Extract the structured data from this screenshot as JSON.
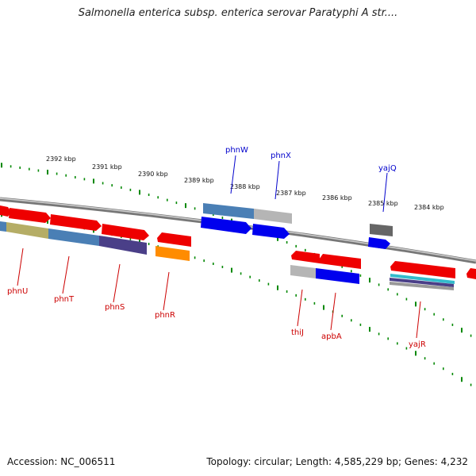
{
  "title": "Salmonella enterica subsp. enterica serovar Paratyphi A str....",
  "footer": {
    "accession": "Accession: NC_006511",
    "topology": "Topology: circular; Length: 4,585,229 bp; Genes: 4,232"
  },
  "ticks": [
    "2392 kbp",
    "2391 kbp",
    "2390 kbp",
    "2389 kbp",
    "2388 kbp",
    "2387 kbp",
    "2386 kbp",
    "2385 kbp",
    "2384 kbp"
  ],
  "genes_above": [
    "phnW",
    "phnX",
    "yajQ"
  ],
  "genes_below": [
    "phnU",
    "phnT",
    "phnS",
    "phnR",
    "thiJ",
    "apbA",
    "yajR"
  ],
  "colors": {
    "forward_label": "#0000cc",
    "reverse_label": "#cc0000",
    "tick": "#008800",
    "backbone": "#888888"
  }
}
